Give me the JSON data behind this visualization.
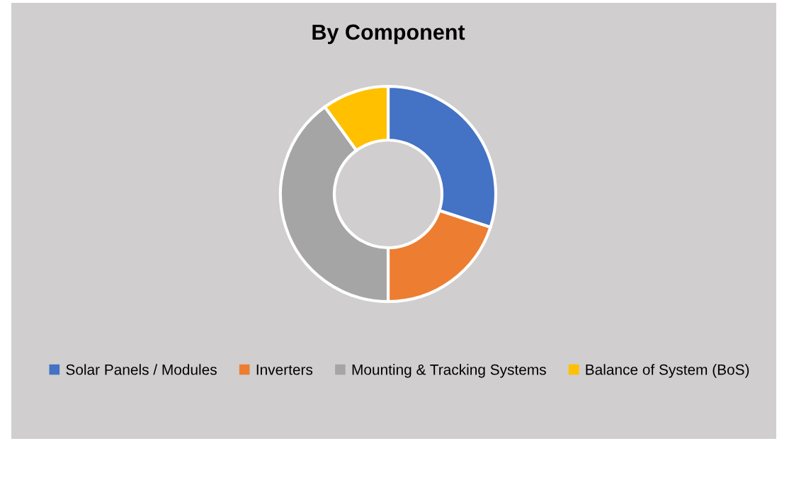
{
  "chart_data": {
    "type": "donut",
    "title": "By Component",
    "categories": [
      "Solar Panels / Modules",
      "Inverters",
      "Mounting & Tracking Systems",
      "Balance of System (BoS)"
    ],
    "values": [
      30,
      20,
      40,
      10
    ],
    "colors": [
      "#4472c4",
      "#ed7d31",
      "#a5a5a5",
      "#ffc000"
    ],
    "legend": "bottom"
  }
}
